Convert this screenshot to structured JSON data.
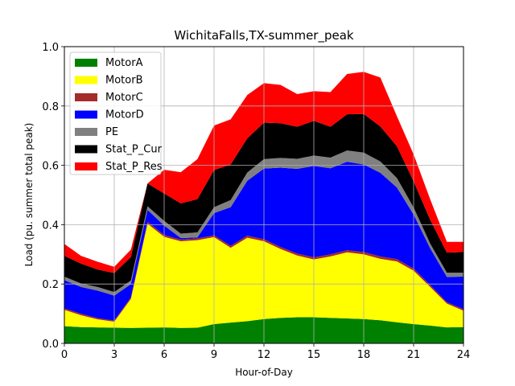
{
  "chart_data": {
    "type": "area",
    "stacked": true,
    "title": "WichitaFalls,TX-summer_peak",
    "xlabel": "Hour-of-Day",
    "ylabel": "Load (pu. summer total peak)",
    "xlim": [
      0,
      24
    ],
    "ylim": [
      0,
      1.0
    ],
    "xticks": [
      0,
      3,
      6,
      9,
      12,
      15,
      18,
      21,
      24
    ],
    "xtick_labels": [
      "0",
      "3",
      "6",
      "9",
      "12",
      "15",
      "18",
      "21",
      "24"
    ],
    "yticks": [
      0,
      0.2,
      0.4,
      0.6,
      0.8,
      1.0
    ],
    "ytick_labels": [
      "0.0",
      "0.2",
      "0.4",
      "0.6",
      "0.8",
      "1.0"
    ],
    "grid": true,
    "legend_position": "top-left",
    "x": [
      0,
      1,
      2,
      3,
      4,
      5,
      6,
      7,
      8,
      9,
      10,
      11,
      12,
      13,
      14,
      15,
      16,
      17,
      18,
      19,
      20,
      21,
      22,
      23,
      24
    ],
    "series": [
      {
        "name": "MotorA",
        "color": "#008000",
        "values": [
          0.058,
          0.055,
          0.054,
          0.053,
          0.052,
          0.053,
          0.054,
          0.052,
          0.053,
          0.065,
          0.07,
          0.075,
          0.082,
          0.086,
          0.088,
          0.088,
          0.086,
          0.084,
          0.082,
          0.078,
          0.071,
          0.065,
          0.06,
          0.054,
          0.055
        ]
      },
      {
        "name": "MotorB",
        "color": "#ffff00",
        "values": [
          0.055,
          0.04,
          0.027,
          0.02,
          0.098,
          0.35,
          0.305,
          0.292,
          0.295,
          0.293,
          0.252,
          0.281,
          0.262,
          0.232,
          0.208,
          0.195,
          0.207,
          0.223,
          0.218,
          0.207,
          0.205,
          0.18,
          0.13,
          0.08,
          0.055
        ]
      },
      {
        "name": "MotorC",
        "color": "#a52a2a",
        "values": [
          0.005,
          0.005,
          0.004,
          0.004,
          0.005,
          0.007,
          0.006,
          0.006,
          0.006,
          0.006,
          0.007,
          0.007,
          0.007,
          0.007,
          0.007,
          0.007,
          0.007,
          0.007,
          0.008,
          0.008,
          0.008,
          0.007,
          0.006,
          0.005,
          0.005
        ]
      },
      {
        "name": "MotorD",
        "color": "#0000ff",
        "values": [
          0.095,
          0.09,
          0.093,
          0.084,
          0.045,
          0.04,
          0.032,
          0.005,
          0.003,
          0.075,
          0.13,
          0.185,
          0.238,
          0.267,
          0.285,
          0.308,
          0.29,
          0.298,
          0.295,
          0.282,
          0.241,
          0.182,
          0.124,
          0.085,
          0.11
        ]
      },
      {
        "name": "PE",
        "color": "#808080",
        "values": [
          0.012,
          0.012,
          0.012,
          0.012,
          0.012,
          0.012,
          0.016,
          0.015,
          0.017,
          0.02,
          0.024,
          0.028,
          0.032,
          0.033,
          0.034,
          0.035,
          0.036,
          0.038,
          0.04,
          0.038,
          0.032,
          0.024,
          0.016,
          0.014,
          0.013
        ]
      },
      {
        "name": "Stat_P_Cur",
        "color": "#000000",
        "values": [
          0.07,
          0.067,
          0.059,
          0.064,
          0.079,
          0.077,
          0.092,
          0.102,
          0.112,
          0.125,
          0.12,
          0.115,
          0.123,
          0.117,
          0.108,
          0.117,
          0.104,
          0.122,
          0.13,
          0.118,
          0.107,
          0.088,
          0.08,
          0.068,
          0.07
        ]
      },
      {
        "name": "Stat_P_Res",
        "color": "#ff0000",
        "values": [
          0.04,
          0.026,
          0.026,
          0.021,
          0.025,
          0.0,
          0.08,
          0.105,
          0.135,
          0.15,
          0.152,
          0.146,
          0.133,
          0.129,
          0.11,
          0.1,
          0.117,
          0.136,
          0.142,
          0.165,
          0.101,
          0.091,
          0.069,
          0.036,
          0.034
        ]
      }
    ]
  }
}
